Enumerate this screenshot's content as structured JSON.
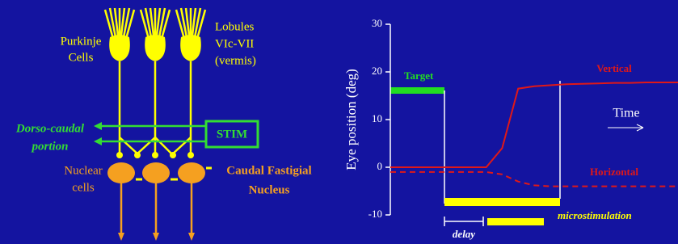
{
  "diagram": {
    "purkinje": [
      "Purkinje",
      "Cells"
    ],
    "lobules": [
      "Lobules",
      "VIc-VII",
      "(vermis)"
    ],
    "dorso": [
      "Dorso-caudal",
      "portion"
    ],
    "stim": "STIM",
    "nuclear": [
      "Nuclear",
      "cells"
    ],
    "fastigial": [
      "Caudal Fastigial",
      "Nucleus"
    ]
  },
  "chart_data": {
    "type": "line",
    "ylabel": "Eye position (deg)",
    "ylim": [
      -10,
      30
    ],
    "yticks": [
      -10,
      0,
      10,
      20,
      30
    ],
    "grid": false,
    "categories": [
      null,
      null,
      null,
      null,
      null,
      null,
      null,
      null,
      null,
      null,
      null,
      null,
      null,
      null,
      null,
      null,
      null,
      null,
      null
    ],
    "series": [
      {
        "name": "Vertical",
        "color": "#e01818",
        "dashed": false,
        "values": [
          0,
          0,
          0,
          0,
          0,
          0,
          0,
          4,
          16.5,
          17,
          17.2,
          17.4,
          17.5,
          17.6,
          17.7,
          17.7,
          17.8,
          17.8,
          17.8
        ]
      },
      {
        "name": "Horizontal",
        "color": "#e01818",
        "dashed": true,
        "values": [
          -1,
          -1,
          -1,
          -1,
          -1,
          -1,
          -1,
          -1.5,
          -3,
          -3.8,
          -4,
          -4,
          -4,
          -4,
          -4,
          -4,
          -4,
          -4,
          -4
        ]
      }
    ],
    "annotations": {
      "time": "Time",
      "target": "Target",
      "microstimulation": "microstimulation",
      "delay": "delay"
    }
  }
}
